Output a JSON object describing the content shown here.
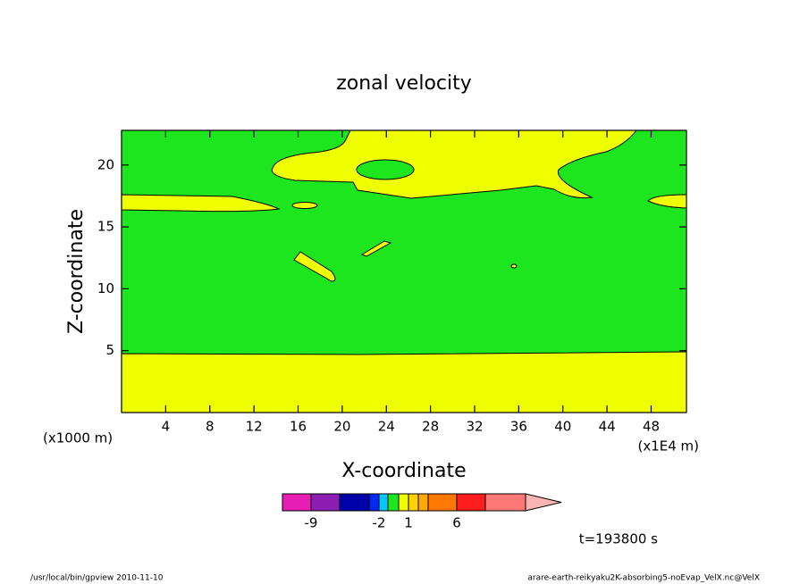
{
  "chart_data": {
    "type": "contour",
    "title": "zonal velocity",
    "x_label": "X-coordinate",
    "y_label": "Z-coordinate",
    "x_unit": "(x1E4 m)",
    "y_unit": "(x1000 m)",
    "xlim": [
      0,
      51.2
    ],
    "xticks": [
      4,
      8,
      12,
      16,
      20,
      24,
      28,
      32,
      36,
      40,
      44,
      48
    ],
    "ylim": [
      0,
      22.8
    ],
    "yticks": [
      5,
      10,
      15,
      20
    ],
    "colorbar": {
      "colors": [
        "#e61eb4",
        "#8c1eb4",
        "#0000aa",
        "#0028f0",
        "#00c8ff",
        "#1ee61e",
        "#f0ff00",
        "#ffd200",
        "#ffaa00",
        "#ff7800",
        "#ff1e1e",
        "#ff7878",
        "#ffb4b4"
      ],
      "ticks": [
        -9,
        -2,
        1,
        6
      ]
    },
    "annotation": "t=193800 s",
    "footer_left": "/usr/local/bin/gpview  2010-11-10",
    "footer_right": "arare-earth-reikyaku2K-absorbing5-noEvap_VelX.nc@VelX"
  }
}
